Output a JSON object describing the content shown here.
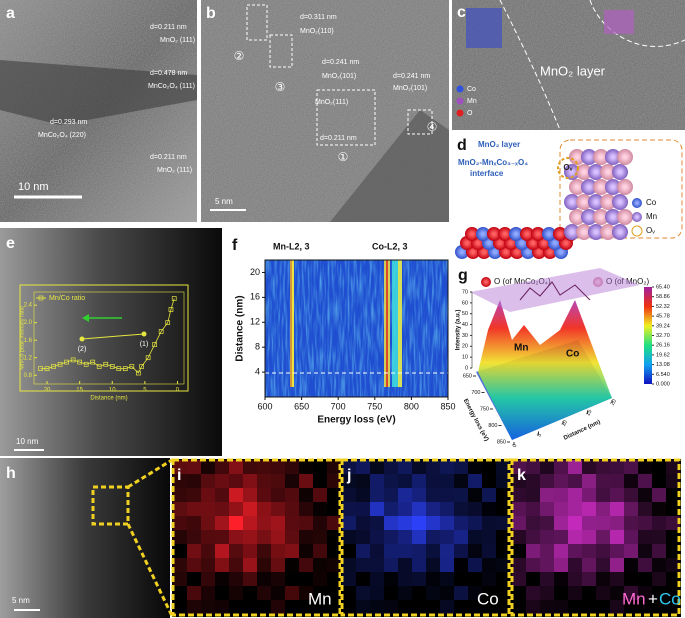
{
  "panels": {
    "a": {
      "label": "a",
      "annotations": [
        {
          "d": "d=0.211 nm",
          "plane": "MnO₂ (111)"
        },
        {
          "d": "d=0.478 nm",
          "plane": "MnCo₂O₄ (111)"
        },
        {
          "d": "d=0.293 nm",
          "plane": "MnCo₂O₄ (220)"
        },
        {
          "d": "d=0.211 nm",
          "plane": "MnO₂ (111)"
        }
      ],
      "scale_bar": "10 nm"
    },
    "b": {
      "label": "b",
      "annotations": [
        {
          "d": "d=0.311 nm",
          "plane": "MnO₂(110)"
        },
        {
          "d": "d=0.241 nm",
          "plane": "MnO₂(101)"
        },
        {
          "d": "d=0.211 nm",
          "plane": "MnO₂(111)"
        },
        {
          "d": "d=0.241 nm",
          "plane": "MnO₂(101)"
        }
      ],
      "markers": [
        "①",
        "②",
        "③",
        "④"
      ],
      "scale_bar": "5 nm"
    },
    "c": {
      "label": "c",
      "title": "MnO₂ layer",
      "legend": [
        "Co",
        "Mn",
        "O"
      ]
    },
    "d": {
      "label": "d",
      "layer": "MnO₂ layer",
      "interface": [
        "MnO₂-MnₓCo₃₋ₓO₄",
        "interface"
      ],
      "vacancy": "Oᵥ",
      "legend": [
        "Co",
        "Mn",
        "Oᵥ"
      ],
      "oxygen_legend": [
        "O (of MnCo₂O₄)",
        "O (of MnO₂)"
      ]
    },
    "e": {
      "label": "e",
      "scale_bar": "10 nm",
      "chart": {
        "type": "line",
        "series_name": "Mn/Co ratio",
        "xlabel": "Distance (nm)",
        "ylabel": "Mn/Co peak intensity ratio",
        "points": [
          "(1)",
          "(2)"
        ],
        "x": [
          21,
          20,
          19,
          18,
          17,
          16,
          15,
          14,
          13,
          12,
          11,
          10,
          9,
          8,
          7,
          6,
          5.5,
          4.5,
          3.5,
          2.5,
          1.5,
          1,
          0.5
        ],
        "values": [
          0.95,
          0.95,
          1.0,
          1.05,
          1.1,
          1.15,
          1.1,
          1.05,
          1.1,
          1.0,
          1.05,
          1.0,
          0.95,
          0.95,
          1.0,
          0.85,
          1.0,
          1.2,
          1.5,
          1.8,
          2.0,
          2.3,
          2.55
        ],
        "color": "#e6e640",
        "xlim": [
          22,
          -1
        ],
        "xticks": [
          20,
          15,
          10,
          5,
          0
        ],
        "ylim": [
          0.6,
          2.7
        ],
        "yticks": [
          0.8,
          1.2,
          1.6,
          {
            "value": 2,
            "label": "2.0"
          },
          2.4
        ]
      }
    },
    "f": {
      "label": "f",
      "chart": {
        "type": "heatmap",
        "annotations": [
          "Mn-L2, 3",
          "Co-L2, 3"
        ],
        "xlabel": "Energy loss (eV)",
        "ylabel": "Distance (nm)",
        "xlim": [
          600,
          850
        ],
        "xticks": [
          600,
          650,
          700,
          750,
          800,
          850
        ],
        "ylim": [
          0,
          22
        ],
        "yticks": [
          4,
          8,
          12,
          16,
          20
        ]
      }
    },
    "g": {
      "label": "g",
      "chart": {
        "type": "surface",
        "labels": [
          "Mn",
          "Co"
        ],
        "zlabel": "Intensity (a.u.)",
        "zlim": [
          0,
          70
        ],
        "zticks": [
          0,
          10,
          20,
          30,
          40,
          50,
          60,
          70
        ],
        "xlabel": "Energy loss (eV)",
        "xlim": [
          650,
          850
        ],
        "xticks": [
          650,
          700,
          750,
          800,
          850
        ],
        "ylabel": "Distance (nm)",
        "ylim": [
          0,
          20
        ],
        "yticks": [
          0,
          5,
          10,
          15,
          20
        ],
        "colorbar_lim": [
          0,
          65.4
        ],
        "colorbar_ticks": [
          {
            "value": 65.4,
            "label": "65.40"
          },
          58.86,
          52.32,
          45.78,
          39.24,
          {
            "value": 32.7,
            "label": "32.70"
          },
          26.16,
          19.62,
          13.08,
          {
            "value": 6.54,
            "label": "6.540"
          },
          {
            "value": 0,
            "label": "0.000"
          }
        ]
      }
    },
    "h": {
      "label": "h",
      "scale_bar": "5 nm"
    },
    "i": {
      "label": "i",
      "element": "Mn"
    },
    "j": {
      "label": "j",
      "element": "Co"
    },
    "k": {
      "label": "k",
      "element_parts": [
        "Mn",
        "+",
        "Co"
      ]
    }
  }
}
